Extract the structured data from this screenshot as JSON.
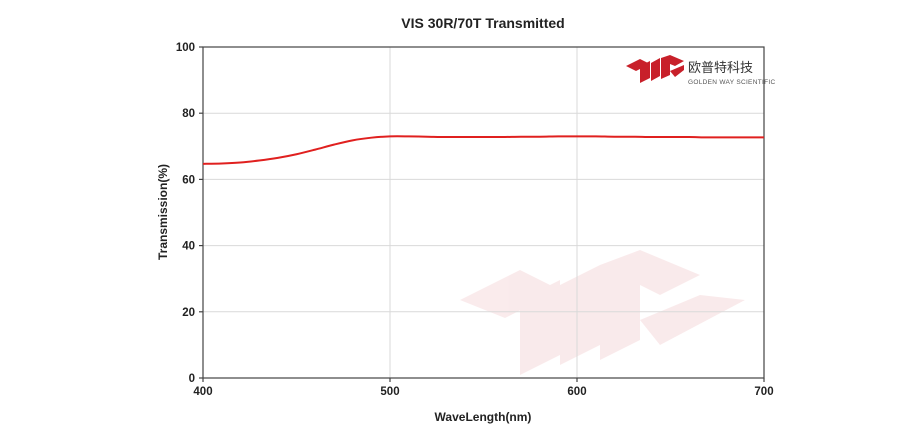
{
  "chart_data": {
    "type": "line",
    "title": "VIS 30R/70T Transmitted",
    "xlabel": "WaveLength(nm)",
    "ylabel": "Transmission(%)",
    "xlim": [
      400,
      700
    ],
    "ylim": [
      0,
      100
    ],
    "xticks": [
      400,
      500,
      600,
      700
    ],
    "yticks": [
      0,
      20,
      40,
      60,
      80,
      100
    ],
    "grid": true,
    "series": [
      {
        "color": "#e0201f",
        "x": [
          400,
          410,
          420,
          430,
          440,
          450,
          460,
          470,
          480,
          490,
          500,
          510,
          520,
          530,
          540,
          550,
          560,
          570,
          580,
          590,
          600,
          610,
          620,
          630,
          640,
          650,
          660,
          670,
          680,
          690,
          700
        ],
        "y": [
          64.7,
          64.8,
          65.1,
          65.7,
          66.5,
          67.6,
          69.0,
          70.5,
          71.8,
          72.6,
          73.0,
          73.0,
          72.9,
          72.8,
          72.8,
          72.8,
          72.8,
          72.9,
          72.9,
          73.0,
          73.0,
          73.0,
          72.9,
          72.9,
          72.8,
          72.8,
          72.8,
          72.7,
          72.7,
          72.7,
          72.7
        ]
      }
    ]
  },
  "logo": {
    "name_cn": "欧普特科技",
    "name_en": "GOLDEN WAY SCIENTIFIC",
    "color": "#c8202a"
  }
}
